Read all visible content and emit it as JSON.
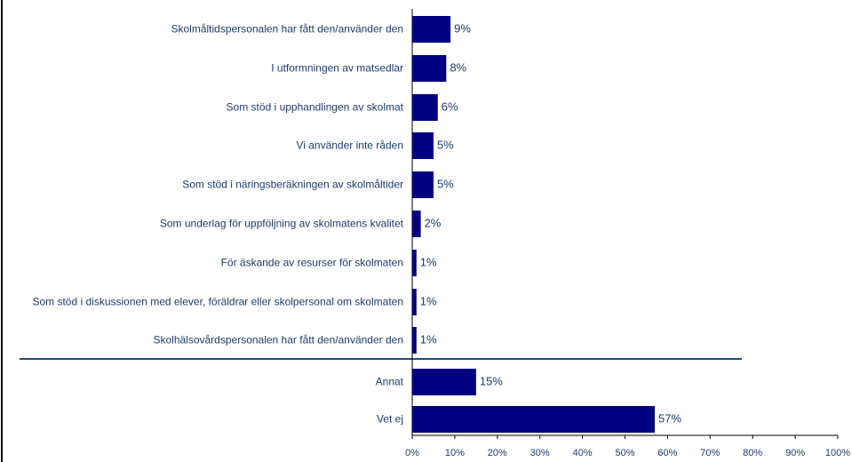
{
  "chart_data": {
    "type": "bar",
    "orientation": "horizontal",
    "categories": [
      "Skolmåltidspersonalen har fått den/använder den",
      "I utformningen av matsedlar",
      "Som stöd i upphandlingen av skolmat",
      "Vi använder inte råden",
      "Som stöd i näringsberäkningen av skolmåltider",
      "Som underlag för uppföljning av skolmatens kvalitet",
      "För äskande av resurser för skolmaten",
      "Som stöd i diskussionen med elever, föräldrar eller skolpersonal om skolmaten",
      "Skolhälsovårdspersonalen har fått den/använder den",
      "Annat",
      "Vet ej"
    ],
    "values": [
      9,
      8,
      6,
      5,
      5,
      2,
      1,
      1,
      1,
      15,
      57
    ],
    "value_labels": [
      "9%",
      "8%",
      "6%",
      "5%",
      "5%",
      "2%",
      "1%",
      "1%",
      "1%",
      "15%",
      "57%"
    ],
    "color": "#000080",
    "xlim": [
      0,
      100
    ],
    "xticks": [
      {
        "value": 0,
        "label": "0%"
      },
      {
        "value": 10,
        "label": "10%"
      },
      {
        "value": 20,
        "label": "20%"
      },
      {
        "value": 30,
        "label": "30%"
      },
      {
        "value": 40,
        "label": "40%"
      },
      {
        "value": 50,
        "label": "50%"
      },
      {
        "value": 60,
        "label": "60%"
      },
      {
        "value": 70,
        "label": "70%"
      },
      {
        "value": 80,
        "label": "80%"
      },
      {
        "value": 90,
        "label": "90%"
      },
      {
        "value": 100,
        "label": "100%"
      }
    ]
  }
}
